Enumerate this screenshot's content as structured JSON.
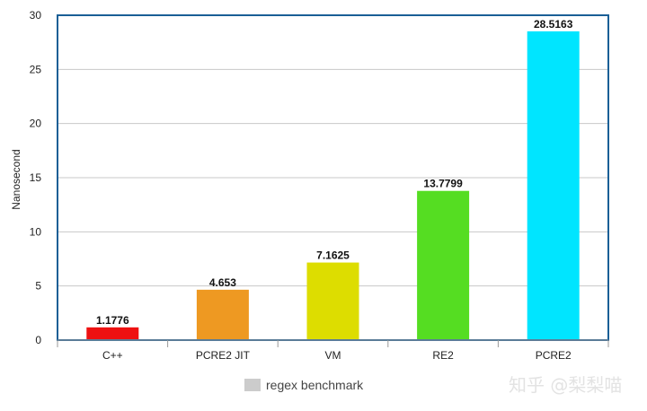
{
  "chart_data": {
    "type": "bar",
    "categories": [
      "C++",
      "PCRE2 JIT",
      "VM",
      "RE2",
      "PCRE2"
    ],
    "series": [
      {
        "name": "regex benchmark",
        "values": [
          1.1776,
          4.653,
          7.1625,
          13.7799,
          28.5163
        ],
        "data_labels": [
          "1.1776",
          "4.653",
          "7.1625",
          "13.7799",
          "28.5163"
        ]
      }
    ],
    "bar_colors": [
      "#ee1111",
      "#ee9922",
      "#dddd00",
      "#55dd22",
      "#00e5ff"
    ],
    "ylabel": "Nanosecond",
    "xlabel": "",
    "ylim": [
      0,
      30
    ],
    "yticks": [
      0,
      5,
      10,
      15,
      20,
      25,
      30
    ],
    "grid": true,
    "legend_position": "bottom",
    "legend_swatch_color": "#cccccc",
    "frame_color": "#1a5f96",
    "grid_color": "#c8c8c8"
  },
  "watermark": "知乎 @梨梨喵"
}
